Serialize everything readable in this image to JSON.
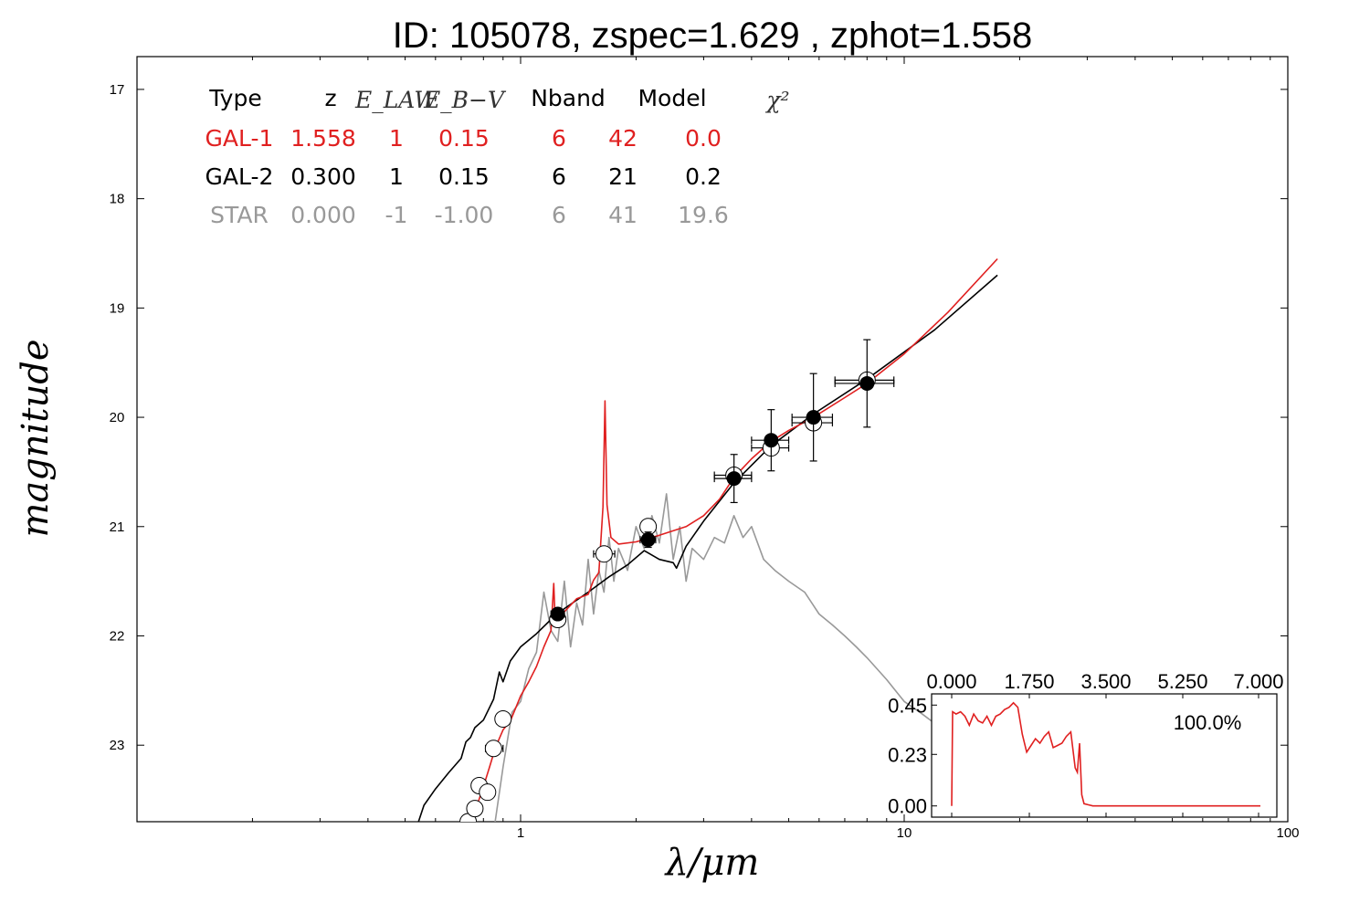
{
  "title": "ID:  105078, zspec=1.629 , zphot=1.558",
  "colors": {
    "gal1": "#e02020",
    "gal2": "#000000",
    "star": "#999999"
  },
  "chart_data": {
    "type": "scatter",
    "xlabel": "λ/μm",
    "ylabel": "magnitude",
    "x_scale": "log",
    "xlim": [
      0.1,
      100
    ],
    "ylim": [
      23.7,
      16.7
    ],
    "x_ticks": [
      {
        "v": 1,
        "label": "1"
      },
      {
        "v": 10,
        "label": "10"
      },
      {
        "v": 100,
        "label": "100"
      }
    ],
    "y_ticks": [
      {
        "v": 17,
        "label": "17"
      },
      {
        "v": 18,
        "label": "18"
      },
      {
        "v": 19,
        "label": "19"
      },
      {
        "v": 20,
        "label": "20"
      },
      {
        "v": 21,
        "label": "21"
      },
      {
        "v": 22,
        "label": "22"
      },
      {
        "v": 23,
        "label": "23"
      }
    ],
    "table": {
      "headers": [
        "Type",
        "z",
        "E_LAW",
        "E_B−V",
        "Nband",
        "Model",
        "χ²"
      ],
      "rows": [
        {
          "series": "gal1",
          "cells": [
            "GAL-1",
            "1.558",
            "1",
            "0.15",
            "6",
            "42",
            "0.0"
          ]
        },
        {
          "series": "gal2",
          "cells": [
            "GAL-2",
            "0.300",
            "1",
            "0.15",
            "6",
            "21",
            "0.2"
          ]
        },
        {
          "series": "star",
          "cells": [
            "STAR",
            "0.000",
            "-1",
            "-1.00",
            "6",
            "41",
            "19.6"
          ]
        }
      ]
    },
    "observed_filled": [
      {
        "x": 1.25,
        "y": 21.8,
        "xerr": [
          1.2,
          1.3
        ],
        "yerr": 0.05
      },
      {
        "x": 2.15,
        "y": 21.12,
        "xerr": [
          2.05,
          2.25
        ],
        "yerr": 0.07
      },
      {
        "x": 3.6,
        "y": 20.56,
        "xerr": [
          3.2,
          4.0
        ],
        "yerr": 0.22
      },
      {
        "x": 4.5,
        "y": 20.21,
        "xerr": [
          4.0,
          5.0
        ],
        "yerr": 0.28
      },
      {
        "x": 5.8,
        "y": 20.0,
        "xerr": [
          5.1,
          6.5
        ],
        "yerr": 0.4
      },
      {
        "x": 8.0,
        "y": 19.69,
        "xerr": [
          6.6,
          9.4
        ],
        "yerr": 0.4
      }
    ],
    "model_open": [
      {
        "x": 0.73,
        "y": 23.7
      },
      {
        "x": 0.76,
        "y": 23.58
      },
      {
        "x": 0.78,
        "y": 23.37
      },
      {
        "x": 0.82,
        "y": 23.43
      },
      {
        "x": 0.85,
        "y": 23.03,
        "xerr": [
          0.81,
          0.9
        ]
      },
      {
        "x": 0.9,
        "y": 22.76,
        "xerr": [
          0.88,
          0.93
        ]
      },
      {
        "x": 1.25,
        "y": 21.85,
        "xerr": [
          1.22,
          1.28
        ]
      },
      {
        "x": 1.65,
        "y": 21.25,
        "xerr": [
          1.55,
          1.76
        ]
      },
      {
        "x": 2.15,
        "y": 21.0,
        "xerr": [
          2.08,
          2.22
        ]
      },
      {
        "x": 3.6,
        "y": 20.53,
        "xerr": [
          3.2,
          4.0
        ]
      },
      {
        "x": 4.5,
        "y": 20.28,
        "xerr": [
          4.0,
          5.0
        ]
      },
      {
        "x": 5.8,
        "y": 20.05,
        "xerr": [
          5.1,
          6.5
        ]
      },
      {
        "x": 8.0,
        "y": 19.66,
        "xerr": [
          6.6,
          9.4
        ]
      }
    ],
    "series": [
      {
        "key": "gal2",
        "x": [
          0.53,
          0.56,
          0.6,
          0.65,
          0.7,
          0.72,
          0.74,
          0.76,
          0.8,
          0.85,
          0.88,
          0.9,
          0.94,
          1.0,
          1.1,
          1.2,
          1.3,
          1.5,
          1.7,
          1.9,
          2.1,
          2.3,
          2.5,
          2.55,
          2.7,
          3.0,
          3.6,
          4.5,
          5.8,
          8.0,
          12.0,
          17.5
        ],
        "y": [
          23.8,
          23.55,
          23.4,
          23.25,
          23.12,
          22.97,
          22.93,
          22.84,
          22.77,
          22.58,
          22.33,
          22.42,
          22.23,
          22.1,
          21.98,
          21.85,
          21.75,
          21.6,
          21.46,
          21.35,
          21.22,
          21.3,
          21.33,
          21.38,
          21.18,
          20.95,
          20.6,
          20.26,
          19.97,
          19.65,
          19.2,
          18.7
        ]
      },
      {
        "key": "gal1",
        "x": [
          0.74,
          0.77,
          0.8,
          0.83,
          0.86,
          0.9,
          0.94,
          1.0,
          1.05,
          1.1,
          1.15,
          1.2,
          1.22,
          1.23,
          1.25,
          1.3,
          1.4,
          1.5,
          1.55,
          1.6,
          1.64,
          1.66,
          1.68,
          1.72,
          1.8,
          2.0,
          2.3,
          2.7,
          3.0,
          3.3,
          3.6,
          4.0,
          4.5,
          5.0,
          5.8,
          7.0,
          8.0,
          10.0,
          13.0,
          17.5
        ],
        "y": [
          23.78,
          23.55,
          23.38,
          23.2,
          23.02,
          22.86,
          22.78,
          22.55,
          22.42,
          22.28,
          22.1,
          21.95,
          21.52,
          21.85,
          21.82,
          21.78,
          21.66,
          21.62,
          21.49,
          21.42,
          20.82,
          19.85,
          20.8,
          21.1,
          21.16,
          21.14,
          21.08,
          21.0,
          20.9,
          20.75,
          20.55,
          20.38,
          20.22,
          20.12,
          20.0,
          19.82,
          19.69,
          19.42,
          19.04,
          18.55
        ]
      },
      {
        "key": "star",
        "x": [
          0.85,
          0.9,
          0.95,
          1.0,
          1.05,
          1.1,
          1.15,
          1.2,
          1.25,
          1.3,
          1.35,
          1.4,
          1.45,
          1.5,
          1.55,
          1.6,
          1.65,
          1.7,
          1.75,
          1.8,
          1.9,
          2.0,
          2.1,
          2.2,
          2.3,
          2.4,
          2.5,
          2.6,
          2.7,
          2.8,
          3.0,
          3.2,
          3.4,
          3.6,
          3.8,
          4.0,
          4.3,
          4.6,
          5.0,
          5.5,
          6.0,
          6.5,
          7.0,
          7.5,
          8.0,
          9.0,
          10.0,
          11.0,
          12.0,
          13.0
        ],
        "y": [
          23.8,
          23.2,
          22.7,
          22.6,
          22.3,
          22.15,
          21.6,
          21.95,
          22.05,
          21.5,
          22.1,
          21.7,
          21.9,
          21.3,
          21.8,
          21.4,
          21.6,
          21.1,
          21.5,
          21.2,
          21.4,
          21.0,
          21.2,
          20.9,
          21.15,
          20.7,
          21.3,
          21.0,
          21.5,
          21.2,
          21.3,
          21.1,
          21.15,
          20.9,
          21.1,
          21.0,
          21.3,
          21.4,
          21.5,
          21.6,
          21.8,
          21.9,
          22.0,
          22.1,
          22.2,
          22.4,
          22.6,
          22.7,
          22.8,
          22.9
        ]
      }
    ],
    "inset": {
      "type": "line",
      "x_ticks": [
        "0.000",
        "1.750",
        "3.500",
        "5.250",
        "7.000"
      ],
      "y_ticks": [
        "0.45",
        "0.23",
        "0.00"
      ],
      "xlim": [
        0,
        7
      ],
      "ylim": [
        -0.05,
        0.5
      ],
      "annotation": "100.0%",
      "x": [
        0.0,
        0.02,
        0.1,
        0.2,
        0.3,
        0.4,
        0.5,
        0.6,
        0.7,
        0.8,
        0.9,
        1.0,
        1.1,
        1.2,
        1.3,
        1.4,
        1.5,
        1.6,
        1.7,
        1.8,
        1.9,
        2.0,
        2.1,
        2.2,
        2.3,
        2.4,
        2.5,
        2.6,
        2.7,
        2.8,
        2.85,
        2.9,
        2.95,
        3.0,
        3.1,
        3.2,
        3.5,
        4.0,
        5.0,
        6.0,
        7.0
      ],
      "y": [
        0.0,
        0.42,
        0.41,
        0.42,
        0.4,
        0.36,
        0.41,
        0.38,
        0.37,
        0.4,
        0.36,
        0.4,
        0.41,
        0.43,
        0.44,
        0.46,
        0.44,
        0.32,
        0.24,
        0.27,
        0.3,
        0.28,
        0.31,
        0.33,
        0.26,
        0.27,
        0.28,
        0.31,
        0.33,
        0.17,
        0.15,
        0.28,
        0.05,
        0.01,
        0.005,
        0.0,
        0.0,
        0.0,
        0.0,
        0.0,
        0.0
      ]
    }
  }
}
